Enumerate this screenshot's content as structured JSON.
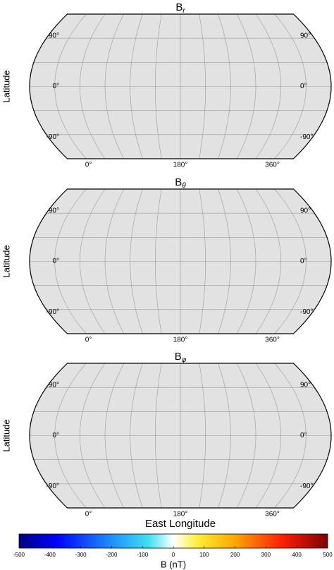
{
  "chart_data": [
    {
      "type": "map",
      "title": "B",
      "title_subscript": "r",
      "ylabel": "Latitude",
      "xlim": [
        0,
        360
      ],
      "ylim": [
        -90,
        90
      ],
      "xticks": [
        {
          "value": 0,
          "label": "0°"
        },
        {
          "value": 180,
          "label": "180°"
        },
        {
          "value": 360,
          "label": "360°"
        }
      ],
      "yticks": [
        {
          "value": -90,
          "label": "-90°"
        },
        {
          "value": 0,
          "label": "0°"
        },
        {
          "value": 90,
          "label": "90°"
        }
      ],
      "grid": true
    },
    {
      "type": "map",
      "title": "B",
      "title_subscript": "θ",
      "ylabel": "Latitude",
      "xlim": [
        0,
        360
      ],
      "ylim": [
        -90,
        90
      ],
      "xticks": [
        {
          "value": 0,
          "label": "0°"
        },
        {
          "value": 180,
          "label": "180°"
        },
        {
          "value": 360,
          "label": "360°"
        }
      ],
      "yticks": [
        {
          "value": -90,
          "label": "-90°"
        },
        {
          "value": 0,
          "label": "0°"
        },
        {
          "value": 90,
          "label": "90°"
        }
      ],
      "grid": true
    },
    {
      "type": "map",
      "title": "B",
      "title_subscript": "φ",
      "ylabel": "Latitude",
      "xlabel": "East Longitude",
      "xlim": [
        0,
        360
      ],
      "ylim": [
        -90,
        90
      ],
      "xticks": [
        {
          "value": 0,
          "label": "0°"
        },
        {
          "value": 180,
          "label": "180°"
        },
        {
          "value": 360,
          "label": "360°"
        }
      ],
      "yticks": [
        {
          "value": -90,
          "label": "-90°"
        },
        {
          "value": 0,
          "label": "0°"
        },
        {
          "value": 90,
          "label": "90°"
        }
      ],
      "grid": true
    },
    {
      "type": "colorbar",
      "label": "B (nT)",
      "clim": [
        -500,
        500
      ],
      "ticks": [
        -500,
        -400,
        -300,
        -200,
        -100,
        0,
        100,
        200,
        300,
        400,
        500
      ]
    }
  ]
}
